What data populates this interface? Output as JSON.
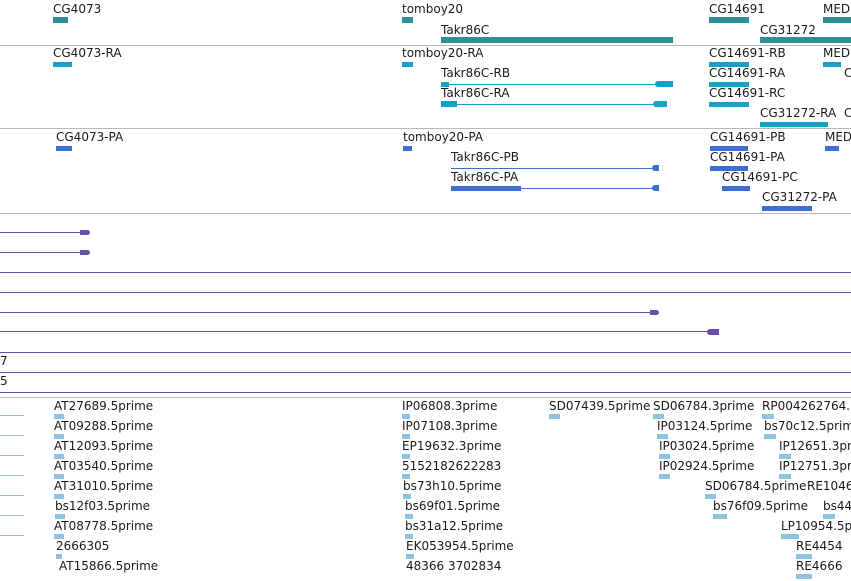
{
  "colors": {
    "gene": "#2e9096",
    "mrna": "#13a2c5",
    "protein": "#3c6fd6",
    "alignment": "#6a4fa9",
    "est": "#8fc3e2",
    "separator": "#b9b9b9"
  },
  "tracks": {
    "genes": {
      "items": [
        {
          "label": "CG4073"
        },
        {
          "label": "tomboy20"
        },
        {
          "label": "Takr86C"
        },
        {
          "label": "CG14691"
        },
        {
          "label": "CG31272"
        },
        {
          "label": "MED"
        }
      ]
    },
    "transcripts": {
      "items": [
        {
          "label": "CG4073-RA"
        },
        {
          "label": "tomboy20-RA"
        },
        {
          "label": "Takr86C-RB"
        },
        {
          "label": "Takr86C-RA"
        },
        {
          "label": "CG14691-RB"
        },
        {
          "label": "CG14691-RA"
        },
        {
          "label": "CG14691-RC"
        },
        {
          "label": "CG31272-RA"
        },
        {
          "label": "MED"
        },
        {
          "label": "C"
        },
        {
          "label": "C"
        }
      ]
    },
    "proteins": {
      "items": [
        {
          "label": "CG4073-PA"
        },
        {
          "label": "tomboy20-PA"
        },
        {
          "label": "Takr86C-PB"
        },
        {
          "label": "Takr86C-PA"
        },
        {
          "label": "CG14691-PB"
        },
        {
          "label": "CG14691-PA"
        },
        {
          "label": "CG14691-PC"
        },
        {
          "label": "CG31272-PA"
        },
        {
          "label": "MED"
        }
      ]
    },
    "alignments": {
      "items": [
        {
          "label": "7"
        },
        {
          "label": "5"
        }
      ]
    },
    "ests": {
      "items": [
        {
          "label": "AT27689.5prime"
        },
        {
          "label": "AT09288.5prime"
        },
        {
          "label": "AT12093.5prime"
        },
        {
          "label": "AT03540.5prime"
        },
        {
          "label": "AT31010.5prime"
        },
        {
          "label": "bs12f03.5prime"
        },
        {
          "label": "AT08778.5prime"
        },
        {
          "label": "2666305"
        },
        {
          "label": "AT15866.5prime"
        },
        {
          "label": "IP06808.3prime"
        },
        {
          "label": "IP07108.3prime"
        },
        {
          "label": "EP19632.3prime"
        },
        {
          "label": "5152182622283"
        },
        {
          "label": "bs73h10.5prime"
        },
        {
          "label": "bs69f01.5prime"
        },
        {
          "label": "bs31a12.5prime"
        },
        {
          "label": "EK053954.5prime"
        },
        {
          "label": "48366 3702834"
        },
        {
          "label": "SD07439.5prime"
        },
        {
          "label": "SD06784.3prime"
        },
        {
          "label": "IP03124.5prime"
        },
        {
          "label": "IP03024.5prime"
        },
        {
          "label": "IP02924.5prime"
        },
        {
          "label": "SD06784.5prime"
        },
        {
          "label": "bs76f09.5prime"
        },
        {
          "label": "RP004262764."
        },
        {
          "label": "bs70c12.5prim"
        },
        {
          "label": "IP12651.3prim"
        },
        {
          "label": "IP12751.3prim"
        },
        {
          "label": "RE1046"
        },
        {
          "label": "bs44"
        },
        {
          "label": "LP10954.5pri"
        },
        {
          "label": "RE4454"
        },
        {
          "label": "RE4666"
        }
      ]
    }
  }
}
